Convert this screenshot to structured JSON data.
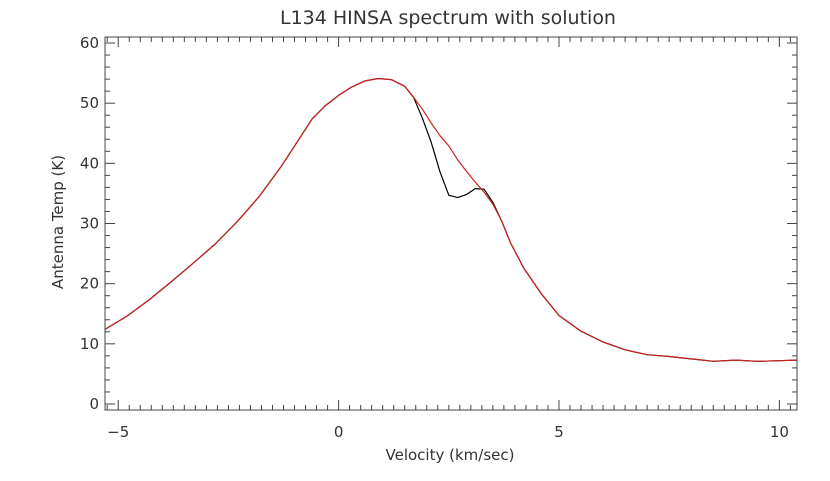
{
  "chart_data": {
    "type": "line",
    "title": "L134 HINSA spectrum with solution",
    "xlabel": "Velocity (km/sec)",
    "ylabel": "Antenna Temp (K)",
    "xlim": [
      -5.3,
      10.4
    ],
    "ylim": [
      -1,
      61
    ],
    "xticks": [
      -5,
      0,
      5,
      10
    ],
    "yticks": [
      0,
      10,
      20,
      30,
      40,
      50,
      60
    ],
    "x_minor_step": 0.25,
    "y_minor_step": 2,
    "grid": false,
    "series": [
      {
        "color": "#000000",
        "points": [
          [
            -5.3,
            12.4
          ],
          [
            -4.8,
            14.6
          ],
          [
            -4.3,
            17.3
          ],
          [
            -3.8,
            20.3
          ],
          [
            -3.3,
            23.4
          ],
          [
            -2.8,
            26.6
          ],
          [
            -2.3,
            30.3
          ],
          [
            -1.8,
            34.5
          ],
          [
            -1.3,
            39.5
          ],
          [
            -0.9,
            44.0
          ],
          [
            -0.6,
            47.4
          ],
          [
            -0.3,
            49.6
          ],
          [
            0.0,
            51.3
          ],
          [
            0.3,
            52.7
          ],
          [
            0.6,
            53.7
          ],
          [
            0.9,
            54.1
          ],
          [
            1.2,
            53.9
          ],
          [
            1.5,
            52.8
          ],
          [
            1.7,
            51.0
          ],
          [
            1.9,
            47.5
          ],
          [
            2.1,
            43.5
          ],
          [
            2.3,
            38.6
          ],
          [
            2.5,
            34.7
          ],
          [
            2.7,
            34.3
          ],
          [
            2.9,
            34.8
          ],
          [
            3.1,
            35.8
          ],
          [
            3.3,
            35.7
          ],
          [
            3.5,
            33.5
          ],
          [
            3.7,
            30.4
          ],
          [
            3.9,
            26.8
          ],
          [
            4.2,
            22.6
          ],
          [
            4.6,
            18.3
          ],
          [
            5.0,
            14.7
          ],
          [
            5.5,
            12.1
          ],
          [
            6.0,
            10.3
          ],
          [
            6.5,
            9.0
          ],
          [
            7.0,
            8.2
          ],
          [
            7.5,
            7.9
          ],
          [
            8.0,
            7.5
          ],
          [
            8.5,
            7.1
          ],
          [
            9.0,
            7.3
          ],
          [
            9.5,
            7.1
          ],
          [
            10.0,
            7.2
          ],
          [
            10.4,
            7.3
          ]
        ]
      },
      {
        "color": "#cc2222",
        "points": [
          [
            -5.3,
            12.4
          ],
          [
            -4.8,
            14.6
          ],
          [
            -4.3,
            17.3
          ],
          [
            -3.8,
            20.3
          ],
          [
            -3.3,
            23.4
          ],
          [
            -2.8,
            26.6
          ],
          [
            -2.3,
            30.3
          ],
          [
            -1.8,
            34.5
          ],
          [
            -1.3,
            39.5
          ],
          [
            -0.9,
            44.0
          ],
          [
            -0.6,
            47.4
          ],
          [
            -0.3,
            49.6
          ],
          [
            0.0,
            51.3
          ],
          [
            0.3,
            52.7
          ],
          [
            0.6,
            53.7
          ],
          [
            0.9,
            54.1
          ],
          [
            1.2,
            53.9
          ],
          [
            1.5,
            52.8
          ],
          [
            1.7,
            51.0
          ],
          [
            1.9,
            49.0
          ],
          [
            2.1,
            46.7
          ],
          [
            2.3,
            44.6
          ],
          [
            2.5,
            42.9
          ],
          [
            2.7,
            40.6
          ],
          [
            2.9,
            38.7
          ],
          [
            3.1,
            36.9
          ],
          [
            3.3,
            35.2
          ],
          [
            3.5,
            33.2
          ],
          [
            3.7,
            30.4
          ],
          [
            3.9,
            26.8
          ],
          [
            4.2,
            22.6
          ],
          [
            4.6,
            18.3
          ],
          [
            5.0,
            14.7
          ],
          [
            5.5,
            12.1
          ],
          [
            6.0,
            10.3
          ],
          [
            6.5,
            9.0
          ],
          [
            7.0,
            8.2
          ],
          [
            7.5,
            7.9
          ],
          [
            8.0,
            7.5
          ],
          [
            8.5,
            7.1
          ],
          [
            9.0,
            7.3
          ],
          [
            9.5,
            7.1
          ],
          [
            10.0,
            7.2
          ],
          [
            10.4,
            7.3
          ]
        ]
      }
    ]
  }
}
